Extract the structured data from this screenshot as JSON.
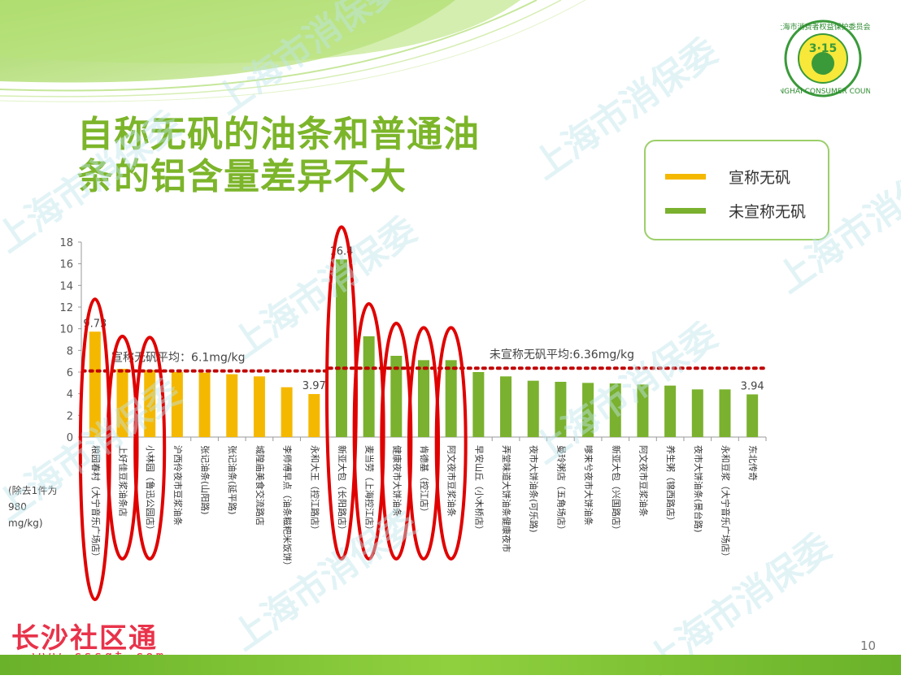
{
  "slide": {
    "title_line1": "自称无矾的油条和普通油",
    "title_line2": "条的铝含量差异不大",
    "page_number": "10",
    "brand_text": "长沙社区通",
    "brand_url": "www.cssqt.com",
    "watermark_text": "上海市消保委",
    "logo": {
      "top_text": "上海市消费者权益保护委员会",
      "bottom_text": "SHANGHAI CONSUMER COUNCIL",
      "mark": "3·15"
    },
    "y_unit_note": [
      "(除去1件为",
      "980",
      "mg/kg)"
    ]
  },
  "colors": {
    "claimed": "#f5b800",
    "unclaimed": "#7ab12e",
    "avg_line": "#c00000",
    "highlight": "#e00000",
    "title": "#7cb52a"
  },
  "chart_data": {
    "type": "bar",
    "ylim": [
      0,
      18
    ],
    "yticks": [
      0,
      2,
      4,
      6,
      8,
      10,
      12,
      14,
      16,
      18
    ],
    "grid": false,
    "legend_position": "top-right",
    "legend": [
      {
        "name": "宣称无矾",
        "color": "#f5b800"
      },
      {
        "name": "未宣称无矾",
        "color": "#7ab12e"
      }
    ],
    "categories": [
      "粮园春村（大宁音乐广场店）",
      "上好佳豆浆油条店",
      "小林园（鲁迅公园店）",
      "沪西伶夜市豆浆油条",
      "张记油条(山阳路)",
      "张记油条(延平路)",
      "城隍庙美食交流路店",
      "李师傅早点（油条糍粑米饭饼）",
      "永和大王（控江路店）",
      "新亚大包（长阳路店）",
      "麦当劳（上海控江店）",
      "健康夜市大饼油条",
      "肯德基（控江店）",
      "阿文夜市豆浆油条",
      "早安山丘（小木桥店）",
      "弄堂味道大饼油条健康夜市",
      "夜市大饼油条(可乐路)",
      "曼玲粥店（五角场店）",
      "嗲来兮夜市大饼油条",
      "新亚大包（兴国路店）",
      "阿文夜市豆浆油条",
      "养生粥（锦西路店）",
      "夜市大饼油条(景台路)",
      "永和豆浆（大宁音乐广场店）",
      "东北传奇"
    ],
    "values": [
      9.73,
      6.3,
      6.2,
      6.0,
      5.95,
      5.8,
      5.6,
      4.6,
      3.97,
      16.4,
      9.3,
      7.5,
      7.1,
      7.1,
      6.0,
      5.6,
      5.2,
      5.1,
      5.0,
      4.95,
      4.85,
      4.75,
      4.4,
      4.4,
      3.94
    ],
    "group": [
      "claimed",
      "claimed",
      "claimed",
      "claimed",
      "claimed",
      "claimed",
      "claimed",
      "claimed",
      "claimed",
      "unclaimed",
      "unclaimed",
      "unclaimed",
      "unclaimed",
      "unclaimed",
      "unclaimed",
      "unclaimed",
      "unclaimed",
      "unclaimed",
      "unclaimed",
      "unclaimed",
      "unclaimed",
      "unclaimed",
      "unclaimed",
      "unclaimed",
      "unclaimed"
    ],
    "data_labels": [
      {
        "index": 0,
        "text": "9.73"
      },
      {
        "index": 8,
        "text": "3.97"
      },
      {
        "index": 9,
        "text": "16.4"
      },
      {
        "index": 24,
        "text": "3.94"
      }
    ],
    "averages": [
      {
        "label": "宣称无矾平均：6.1mg/kg",
        "value": 6.1,
        "from_index": 0,
        "to_index": 8
      },
      {
        "label": "未宣称无矾平均:6.36mg/kg",
        "value": 6.36,
        "from_index": 9,
        "to_index": 24
      }
    ],
    "highlighted_indices": [
      0,
      1,
      2,
      9,
      10,
      11,
      12,
      13
    ]
  }
}
